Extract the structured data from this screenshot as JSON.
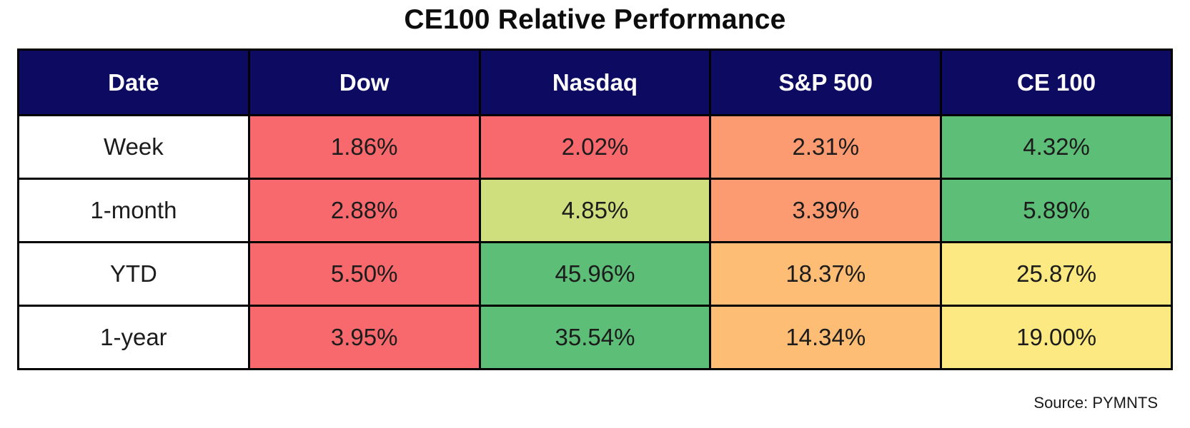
{
  "title": "CE100 Relative Performance",
  "source": "Source: PYMNTS",
  "palette": {
    "header_bg": "#0c0a61",
    "header_text": "#ffffff",
    "border": "#000000",
    "red": "#f7696c",
    "salmon_orange": "#fc9b72",
    "light_orange": "#fdbd74",
    "yellow": "#fde982",
    "yellow_green": "#cfdf7d",
    "green": "#5dbe78"
  },
  "table": {
    "headers": [
      "Date",
      "Dow",
      "Nasdaq",
      "S&P 500",
      "CE 100"
    ],
    "rows": [
      {
        "label": "Week",
        "cells": [
          {
            "value": "1.86%",
            "bg": "#f7696c"
          },
          {
            "value": "2.02%",
            "bg": "#f7696c"
          },
          {
            "value": "2.31%",
            "bg": "#fc9b72"
          },
          {
            "value": "4.32%",
            "bg": "#5dbe78"
          }
        ]
      },
      {
        "label": "1-month",
        "cells": [
          {
            "value": "2.88%",
            "bg": "#f7696c"
          },
          {
            "value": "4.85%",
            "bg": "#cfdf7d"
          },
          {
            "value": "3.39%",
            "bg": "#fc9b72"
          },
          {
            "value": "5.89%",
            "bg": "#5dbe78"
          }
        ]
      },
      {
        "label": "YTD",
        "cells": [
          {
            "value": "5.50%",
            "bg": "#f7696c"
          },
          {
            "value": "45.96%",
            "bg": "#5dbe78"
          },
          {
            "value": "18.37%",
            "bg": "#fdbd74"
          },
          {
            "value": "25.87%",
            "bg": "#fde982"
          }
        ]
      },
      {
        "label": "1-year",
        "cells": [
          {
            "value": "3.95%",
            "bg": "#f7696c"
          },
          {
            "value": "35.54%",
            "bg": "#5dbe78"
          },
          {
            "value": "14.34%",
            "bg": "#fdbd74"
          },
          {
            "value": "19.00%",
            "bg": "#fde982"
          }
        ]
      }
    ]
  },
  "chart_data": {
    "type": "table",
    "title": "CE100 Relative Performance",
    "columns": [
      "Date",
      "Dow",
      "Nasdaq",
      "S&P 500",
      "CE 100"
    ],
    "rows": [
      [
        "Week",
        "1.86%",
        "2.02%",
        "2.31%",
        "4.32%"
      ],
      [
        "1-month",
        "2.88%",
        "4.85%",
        "3.39%",
        "5.89%"
      ],
      [
        "YTD",
        "5.50%",
        "45.96%",
        "18.37%",
        "25.87%"
      ],
      [
        "1-year",
        "3.95%",
        "35.54%",
        "14.34%",
        "19.00%"
      ]
    ],
    "series": [
      {
        "name": "Dow",
        "values": [
          1.86,
          2.88,
          5.5,
          3.95
        ]
      },
      {
        "name": "Nasdaq",
        "values": [
          2.02,
          4.85,
          45.96,
          35.54
        ]
      },
      {
        "name": "S&P 500",
        "values": [
          2.31,
          3.39,
          18.37,
          14.34
        ]
      },
      {
        "name": "CE 100",
        "values": [
          4.32,
          5.89,
          25.87,
          19.0
        ]
      }
    ],
    "categories": [
      "Week",
      "1-month",
      "YTD",
      "1-year"
    ],
    "value_unit": "%",
    "style": "heatmap-colored cells, red (low) to green (high) per row",
    "source_label": "Source: PYMNTS"
  }
}
